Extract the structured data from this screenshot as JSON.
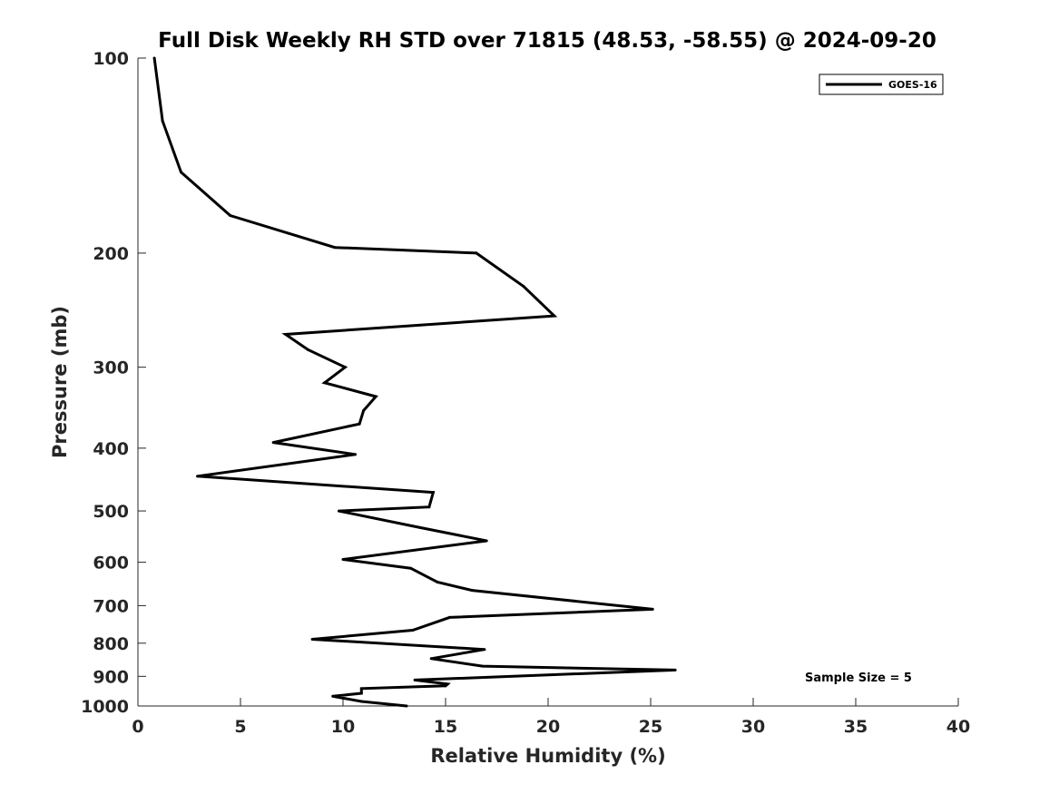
{
  "chart_data": {
    "type": "line",
    "title": "Full Disk Weekly RH STD over 71815 (48.53, -58.55) @ 2024-09-20",
    "xlabel": "Relative Humidity (%)",
    "ylabel": "Pressure (mb)",
    "xlim": [
      0,
      40
    ],
    "ylim": [
      100,
      1000
    ],
    "yscale": "log",
    "y_reversed": true,
    "grid": false,
    "x_ticks": [
      0,
      5,
      10,
      15,
      20,
      25,
      30,
      35,
      40
    ],
    "x_tick_labels": [
      "0",
      "5",
      "10",
      "15",
      "20",
      "25",
      "30",
      "35",
      "40"
    ],
    "y_ticks": [
      100,
      200,
      300,
      400,
      500,
      600,
      700,
      800,
      900,
      1000
    ],
    "y_tick_labels": [
      "100",
      "200",
      "300",
      "400",
      "500",
      "600",
      "700",
      "800",
      "900",
      "1000"
    ],
    "legend": {
      "position": "top-right",
      "entries": [
        "GOES-16"
      ]
    },
    "annotation": "Sample Size = 5",
    "series": [
      {
        "name": "GOES-16",
        "color": "#000000",
        "x": [
          0.8,
          1.2,
          2.1,
          4.5,
          9.6,
          16.5,
          18.8,
          20.3,
          7.2,
          8.3,
          10.1,
          9.1,
          11.6,
          11.0,
          10.8,
          6.6,
          10.6,
          2.9,
          14.4,
          14.2,
          9.8,
          13.7,
          17.0,
          10.0,
          13.3,
          14.6,
          16.3,
          25.1,
          15.2,
          13.4,
          8.5,
          16.9,
          14.3,
          16.8,
          26.2,
          13.5,
          15.1,
          15.0,
          10.9,
          10.9,
          9.5,
          10.9,
          13.1
        ],
        "y": [
          100,
          125,
          150,
          175,
          196,
          200,
          225,
          250,
          267,
          282,
          300,
          317,
          333,
          350,
          367,
          392,
          409,
          442,
          468,
          493,
          500,
          530,
          556,
          594,
          613,
          644,
          663,
          709,
          730,
          764,
          789,
          818,
          845,
          868,
          880,
          912,
          925,
          931,
          940,
          956,
          966,
          984,
          1000
        ]
      }
    ]
  }
}
